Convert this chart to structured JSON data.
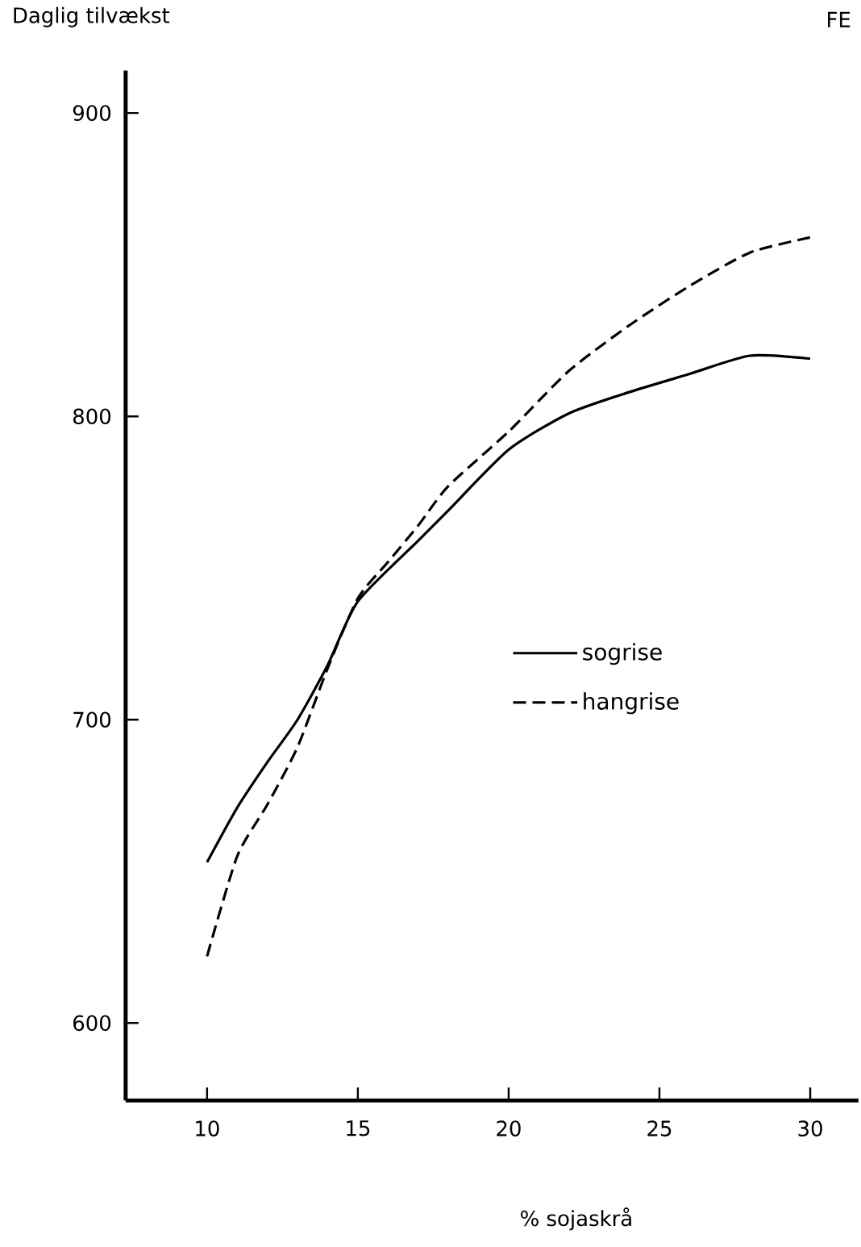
{
  "chart_data": {
    "type": "line",
    "xlabel": "% sojaskrå",
    "ylabel": "Daglig tilvækst",
    "annotations": [
      "FE"
    ],
    "xlim": [
      7.3,
      31.6
    ],
    "xticks": [
      10,
      15,
      20,
      25,
      30
    ],
    "ylim": [
      574.5,
      914
    ],
    "yticks": [
      600,
      700,
      800,
      900
    ],
    "legend": "right",
    "marker": "none",
    "series": [
      {
        "name": "sogrise",
        "color": "#000000",
        "line_style": "solid",
        "x": [
          10,
          11,
          12,
          13,
          14,
          15,
          17,
          18,
          20,
          22,
          24,
          26,
          28,
          30
        ],
        "values": [
          653,
          671,
          686,
          700,
          718,
          739,
          759,
          769,
          789,
          801,
          808,
          814,
          820,
          819
        ]
      },
      {
        "name": "hangrise",
        "color": "#000000",
        "line_style": "dashed",
        "x": [
          10,
          11,
          12,
          13,
          14,
          15,
          16,
          17,
          18,
          20,
          22,
          24,
          26,
          28,
          30
        ],
        "values": [
          622,
          655,
          672,
          691,
          717,
          740,
          752,
          764,
          777,
          795,
          815,
          830,
          843,
          854,
          859
        ]
      }
    ]
  }
}
